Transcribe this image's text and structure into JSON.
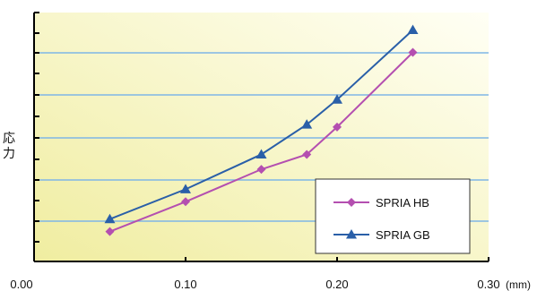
{
  "chart_data": {
    "type": "line",
    "ylabel": "応力",
    "x_unit": "(mm)",
    "x_ticks": [
      {
        "value": 0.0,
        "label": "0.00"
      },
      {
        "value": 0.1,
        "label": "0.10"
      },
      {
        "value": 0.2,
        "label": "0.20"
      },
      {
        "value": 0.3,
        "label": "0.30"
      }
    ],
    "xlim": [
      0,
      0.3
    ],
    "ylim": [
      0,
      10
    ],
    "y_tick_labels_shown": false,
    "grid": "horizontal",
    "legend_position": "bottom-right",
    "series": [
      {
        "name": "SPRIA HB",
        "color": "#b44fb0",
        "marker": "diamond",
        "x": [
          0.05,
          0.1,
          0.15,
          0.18,
          0.2,
          0.25
        ],
        "y": [
          1.2,
          2.4,
          3.7,
          4.3,
          5.4,
          8.4
        ]
      },
      {
        "name": "SPRIA GB",
        "color": "#2a5fa8",
        "marker": "triangle",
        "x": [
          0.05,
          0.1,
          0.15,
          0.18,
          0.2,
          0.25
        ],
        "y": [
          1.7,
          2.9,
          4.3,
          5.5,
          6.5,
          9.3
        ]
      }
    ],
    "colors": {
      "grid": "#7fb6e6",
      "axis": "#000000",
      "bg_light": "#fffff5",
      "bg_dark": "#f0eda0"
    }
  }
}
